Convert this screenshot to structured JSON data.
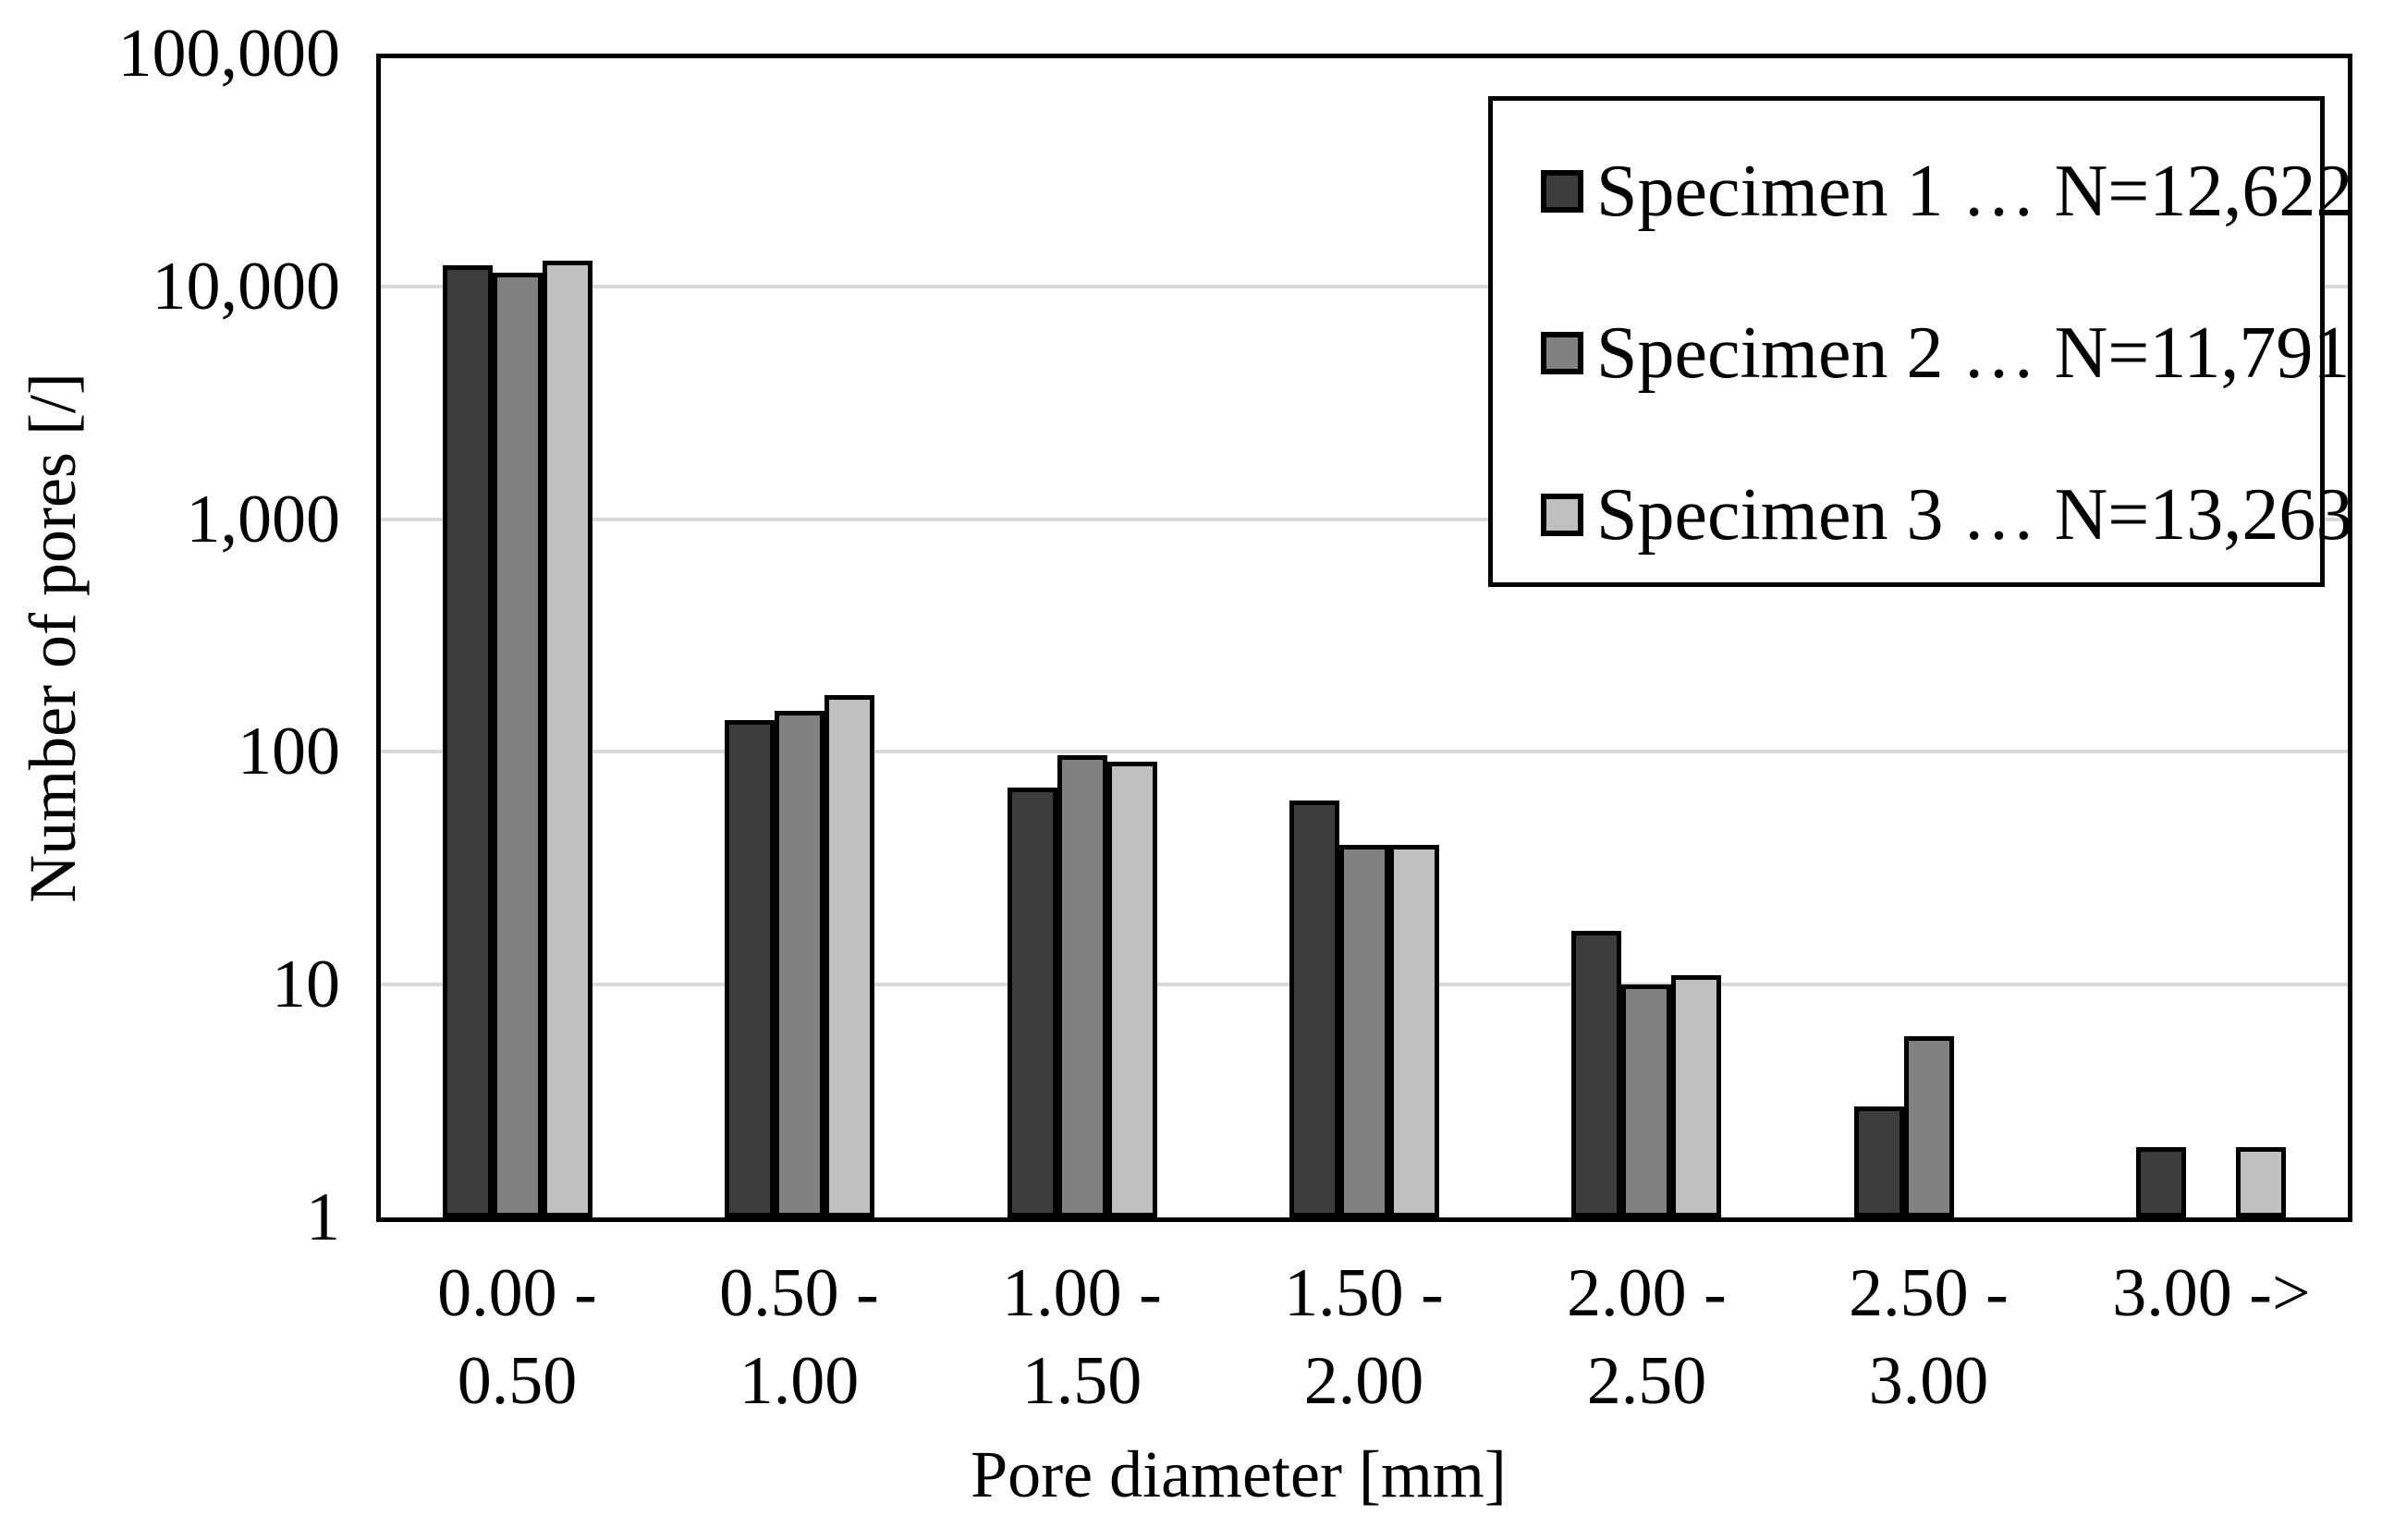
{
  "chart_data": {
    "type": "bar",
    "title": "",
    "xlabel": "Pore diameter [mm]",
    "ylabel": "Number of pores [/]",
    "y_scale": "log10",
    "ylim": [
      1,
      100000
    ],
    "grid": true,
    "gridline_color": "#d9d9d9",
    "axis_color": "#000000",
    "background_color": "#ffffff",
    "legend_position": "top-right",
    "y_ticks": [
      {
        "value": 1,
        "label": "1"
      },
      {
        "value": 10,
        "label": "10"
      },
      {
        "value": 100,
        "label": "100"
      },
      {
        "value": 1000,
        "label": "1,000"
      },
      {
        "value": 10000,
        "label": "10,000"
      },
      {
        "value": 100000,
        "label": "100,000"
      }
    ],
    "categories": [
      "0.00 -\n0.50",
      "0.50 -\n1.00",
      "1.00 -\n1.50",
      "1.50 -\n2.00",
      "2.00 -\n2.50",
      "2.50 -\n3.00",
      "3.00 ->"
    ],
    "series": [
      {
        "name": "Specimen 1",
        "legend_label": "Specimen 1 … N=12,622",
        "total_N": "12,622",
        "color": "#3d3d3d",
        "values": [
          12331,
          137,
          70,
          62,
          17,
          3,
          2
        ]
      },
      {
        "name": "Specimen 2",
        "legend_label": "Specimen 2 … N=11,791",
        "total_N": "11,791",
        "color": "#808080",
        "values": [
          11488,
          150,
          97,
          40,
          10,
          6,
          0
        ]
      },
      {
        "name": "Specimen 3",
        "legend_label": "Specimen 3 … N=13,263",
        "total_N": "13,263",
        "color": "#c0c0c0",
        "values": [
          12944,
          175,
          91,
          40,
          11,
          0,
          2
        ]
      }
    ]
  }
}
